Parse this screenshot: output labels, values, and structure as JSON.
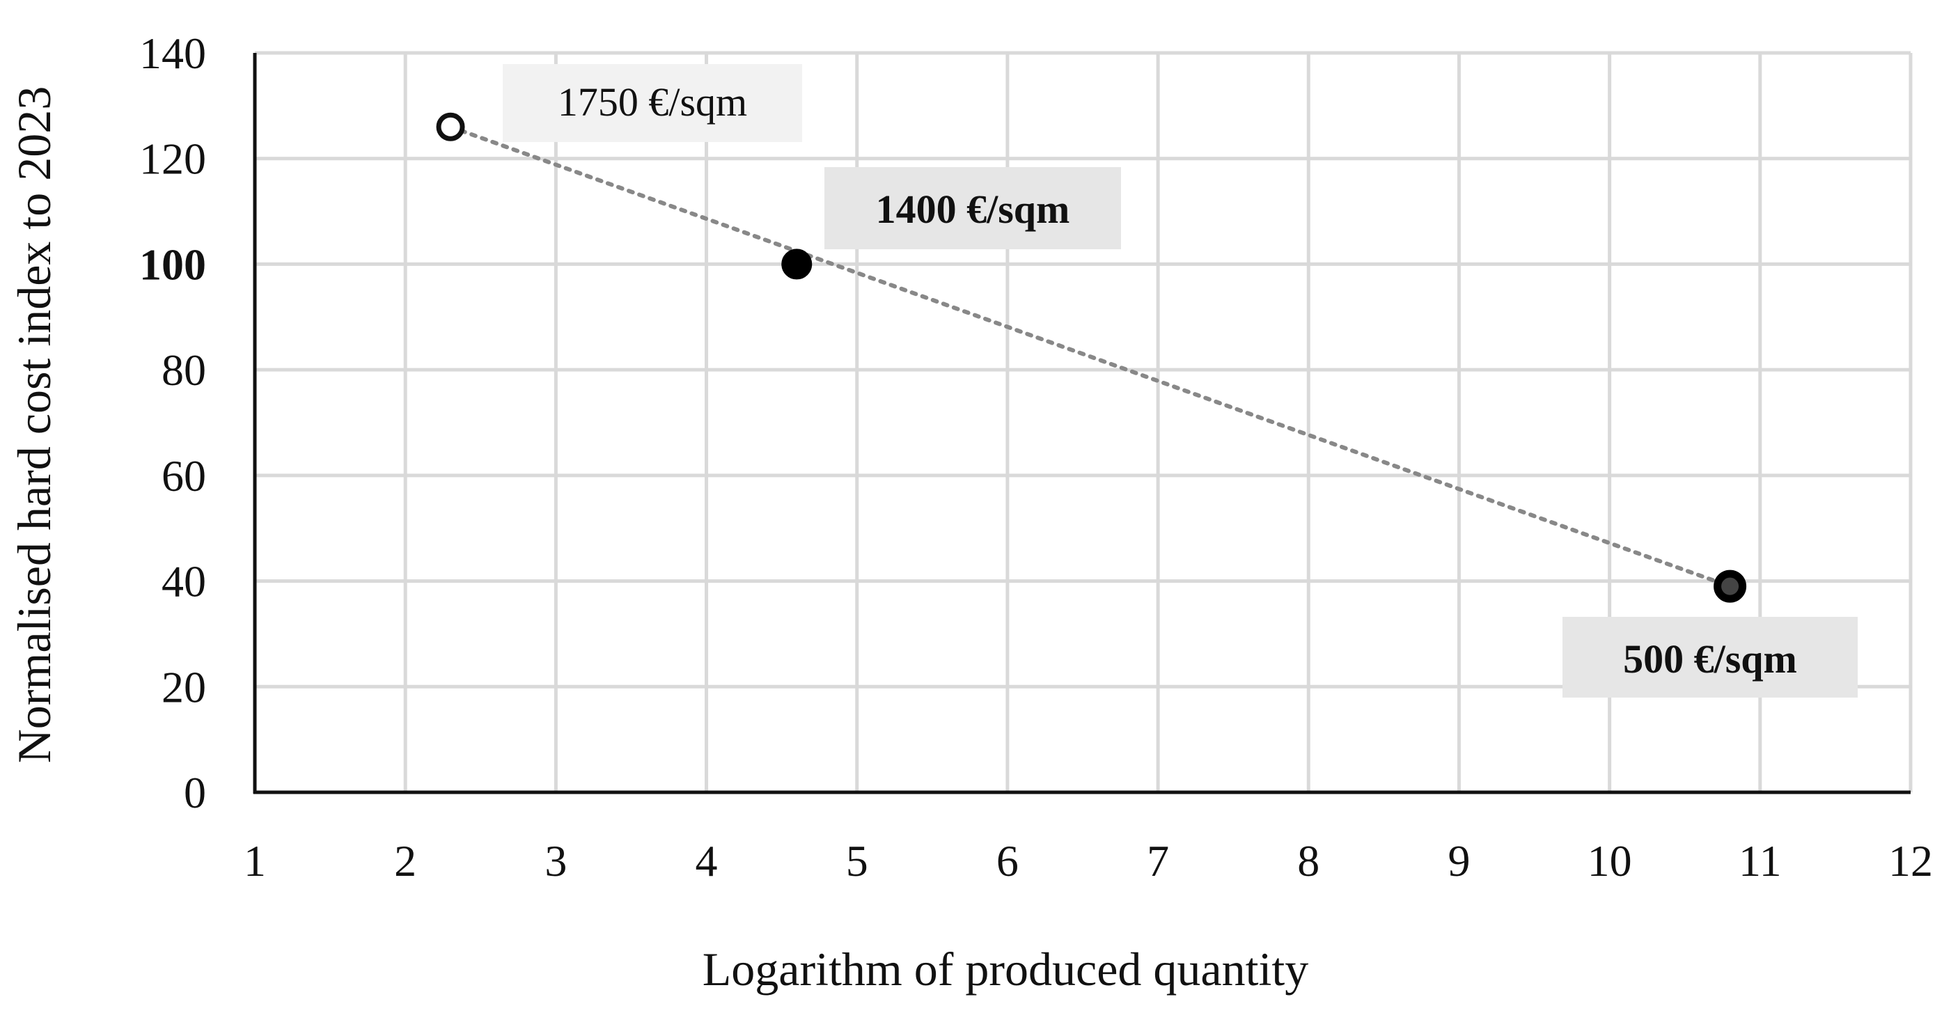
{
  "chart_data": {
    "type": "scatter",
    "xlabel": "Logarithm of produced quantity",
    "ylabel": "Normalised hard cost index to 2023",
    "xlim": [
      1,
      12
    ],
    "ylim": [
      0,
      140
    ],
    "x_ticks": [
      1,
      2,
      3,
      4,
      5,
      6,
      7,
      8,
      9,
      10,
      11,
      12
    ],
    "y_ticks": [
      0,
      20,
      40,
      60,
      80,
      100,
      120,
      140
    ],
    "bold_y_tick": 100,
    "grid": true,
    "trendline": {
      "style": "dotted",
      "color": "#888888",
      "from": [
        2.3,
        126
      ],
      "to": [
        10.8,
        39
      ]
    },
    "points": [
      {
        "x": 2.3,
        "y": 126,
        "style": "hollow",
        "label": "1750 €/sqm",
        "label_bold": false,
        "label_bg": "#f2f2f2"
      },
      {
        "x": 4.6,
        "y": 100,
        "style": "filled",
        "label": "1400 €/sqm",
        "label_bold": true,
        "label_bg": "#e6e6e6"
      },
      {
        "x": 10.8,
        "y": 39,
        "style": "ring",
        "label": "500 €/sqm",
        "label_bold": true,
        "label_bg": "#e6e6e6"
      }
    ]
  }
}
